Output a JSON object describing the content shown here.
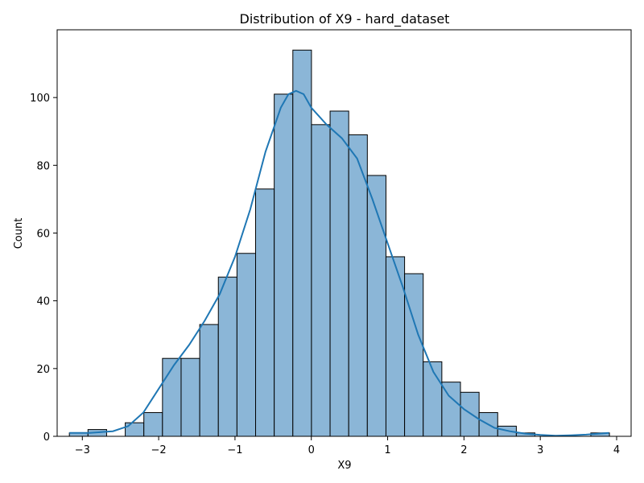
{
  "chart_data": {
    "type": "bar",
    "title": "Distribution of X9 - hard_dataset",
    "xlabel": "X9",
    "ylabel": "Count",
    "xlim": [
      -3.33,
      4.19
    ],
    "ylim": [
      0,
      120
    ],
    "x_ticks": [
      -3,
      -2,
      -1,
      0,
      1,
      2,
      3,
      4
    ],
    "y_ticks": [
      0,
      20,
      40,
      60,
      80,
      100
    ],
    "x_tick_labels": [
      "−3",
      "−2",
      "−1",
      "0",
      "1",
      "2",
      "3",
      "4"
    ],
    "y_tick_labels": [
      "0",
      "20",
      "40",
      "60",
      "80",
      "100"
    ],
    "bin_edges": [
      -3.17,
      -2.926,
      -2.682,
      -2.438,
      -2.194,
      -1.95,
      -1.706,
      -1.462,
      -1.218,
      -0.974,
      -0.73,
      -0.486,
      -0.242,
      0.002,
      0.246,
      0.49,
      0.734,
      0.978,
      1.222,
      1.466,
      1.71,
      1.954,
      2.198,
      2.442,
      2.686,
      2.93,
      3.174,
      3.418,
      3.662,
      3.906
    ],
    "counts": [
      1,
      2,
      0,
      4,
      7,
      23,
      23,
      33,
      47,
      54,
      73,
      101,
      114,
      92,
      96,
      89,
      77,
      53,
      48,
      22,
      16,
      13,
      7,
      3,
      1,
      0,
      0,
      0,
      1
    ],
    "kde": {
      "x": [
        -3.17,
        -2.9,
        -2.6,
        -2.4,
        -2.2,
        -2.0,
        -1.8,
        -1.6,
        -1.4,
        -1.2,
        -1.0,
        -0.8,
        -0.6,
        -0.4,
        -0.3,
        -0.2,
        -0.1,
        0.0,
        0.2,
        0.4,
        0.6,
        0.8,
        1.0,
        1.2,
        1.4,
        1.6,
        1.8,
        2.0,
        2.2,
        2.4,
        2.6,
        2.8,
        3.0,
        3.2,
        3.4,
        3.6,
        3.9
      ],
      "y": [
        1,
        1,
        1.5,
        3,
        7,
        14,
        21,
        27,
        34,
        42,
        53,
        67,
        84,
        97,
        101,
        102,
        101,
        97,
        92,
        88,
        82,
        70,
        57,
        44,
        30,
        19,
        12,
        8,
        5,
        2.5,
        1.5,
        0.8,
        0.4,
        0.2,
        0.3,
        0.5,
        1
      ]
    },
    "bar_color": "#8bb6d7",
    "bar_edge_color": "#000000",
    "line_color": "#1f77b4",
    "grid": false,
    "legend": "none"
  }
}
